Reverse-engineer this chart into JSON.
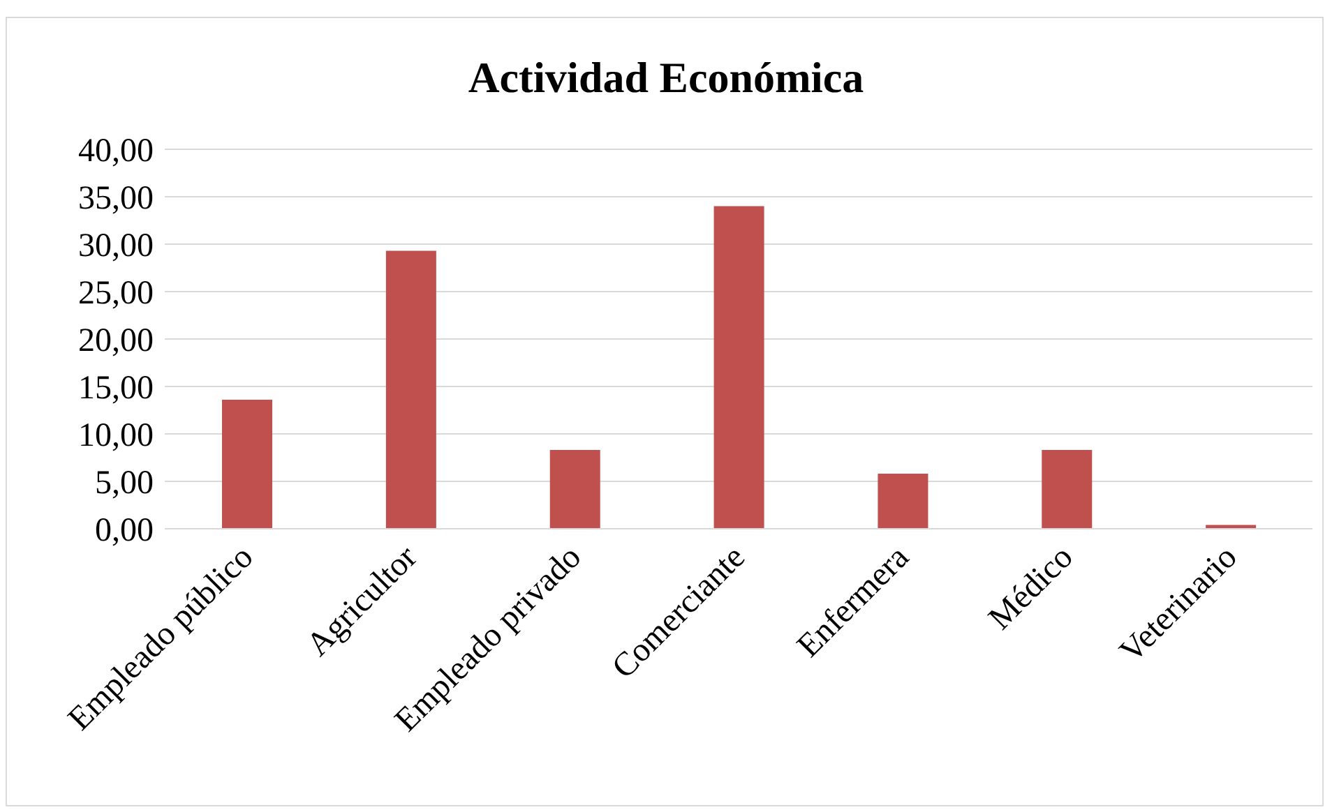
{
  "chart_data": {
    "type": "bar",
    "title": "Actividad Económica",
    "categories": [
      "Empleado público",
      "Agricultor",
      "Empleado privado",
      "Comerciante",
      "Enfermera",
      "Médico",
      "Veterinario"
    ],
    "values": [
      13.6,
      29.3,
      8.3,
      34.0,
      5.8,
      8.3,
      0.4
    ],
    "color": "#c0504d",
    "ylim": [
      0,
      40
    ],
    "yticks": [
      {
        "value": 0,
        "label": "0,00"
      },
      {
        "value": 5,
        "label": "5,00"
      },
      {
        "value": 10,
        "label": "10,00"
      },
      {
        "value": 15,
        "label": "15,00"
      },
      {
        "value": 20,
        "label": "20,00"
      },
      {
        "value": 25,
        "label": "25,00"
      },
      {
        "value": 30,
        "label": "30,00"
      },
      {
        "value": 35,
        "label": "35,00"
      },
      {
        "value": 40,
        "label": "40,00"
      }
    ],
    "grid": "y"
  }
}
